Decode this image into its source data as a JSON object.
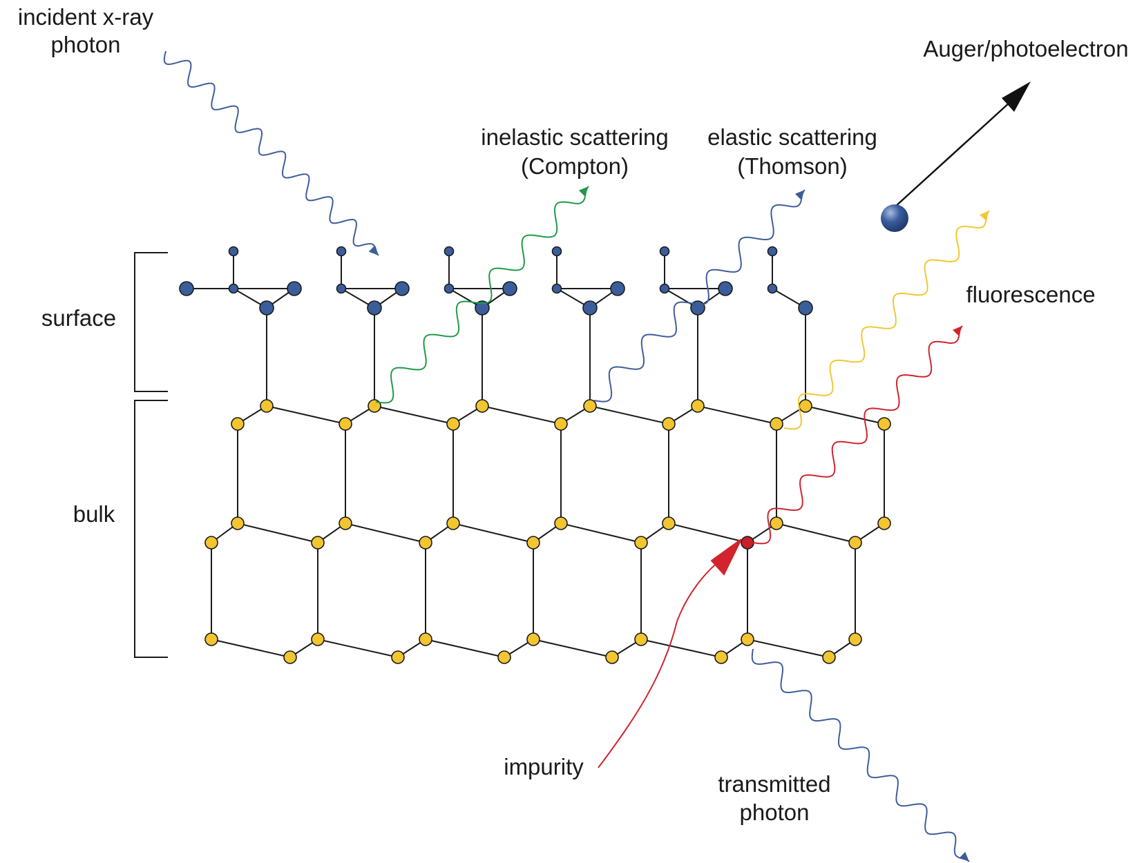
{
  "labels": {
    "incident_line1": "incident x-ray",
    "incident_line2": "photon",
    "auger": "Auger/photoelectron",
    "inelastic_line1": "inelastic scattering",
    "inelastic_line2": "(Compton)",
    "elastic_line1": "elastic scattering",
    "elastic_line2": "(Thomson)",
    "fluorescence": "fluorescence",
    "surface": "surface",
    "bulk": "bulk",
    "impurity": "impurity",
    "transmitted_line1": "transmitted",
    "transmitted_line2": "photon"
  },
  "colors": {
    "incident_wave": "#3e5d99",
    "compton_wave": "#1f9a4a",
    "thomson_wave": "#3e5d99",
    "fluorescence_wave": "#f0c832",
    "impurity_wave": "#d1242e",
    "transmitted_wave": "#3e5d99",
    "bulk_atom": "#f2c531",
    "surface_atom": "#3a5e9c",
    "impurity_atom": "#c8202a",
    "electron": "#3a5e9c",
    "electron_arrow": "#111111"
  }
}
